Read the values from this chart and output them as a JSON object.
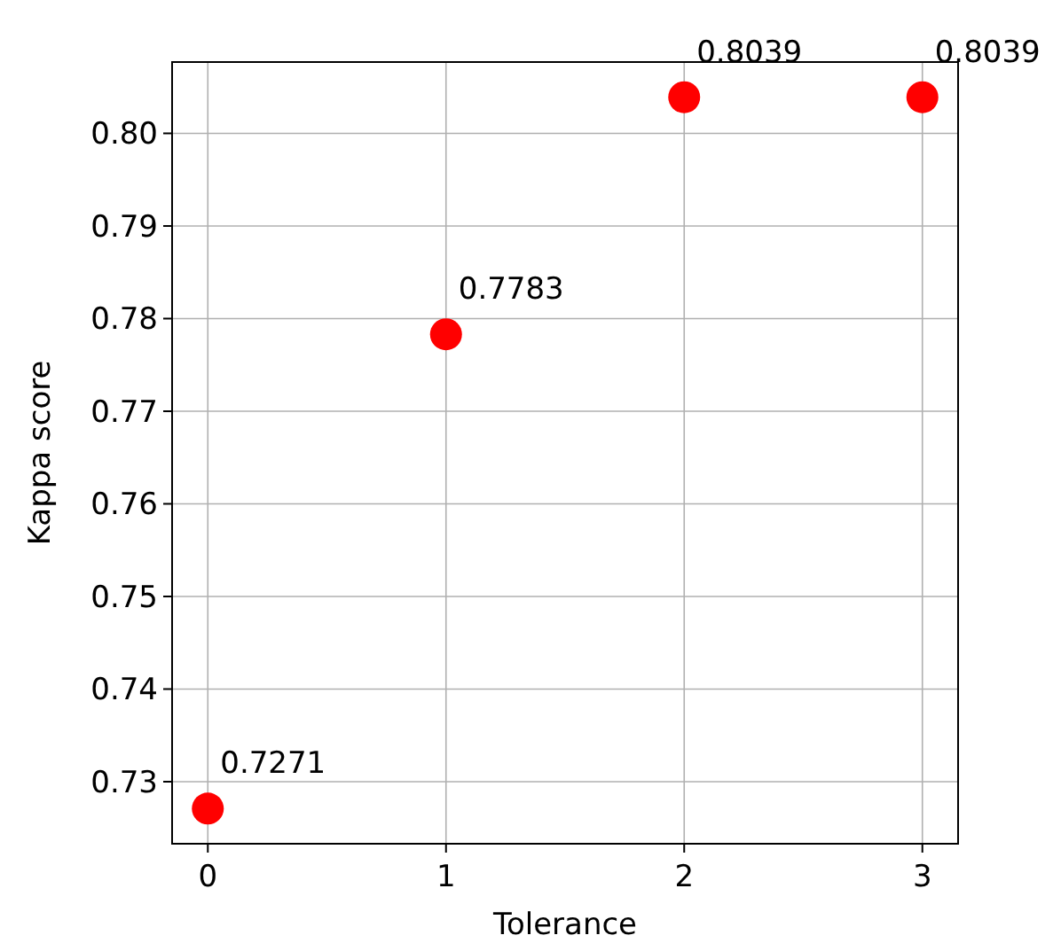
{
  "chart_data": {
    "type": "scatter",
    "xlabel": "Tolerance",
    "ylabel": "Kappa score",
    "x": [
      0,
      1,
      2,
      3
    ],
    "values": [
      0.7271,
      0.7783,
      0.8039,
      0.8039
    ],
    "color": "#ff0000",
    "marker": "circle",
    "data_labels": true,
    "grid": true,
    "xlim": [
      -0.15,
      3.15
    ],
    "xticks": [
      0,
      1,
      2,
      3
    ],
    "ylim": [
      0.7233,
      0.8077
    ],
    "yticks": [
      {
        "value": 0.73,
        "label": "0.73"
      },
      {
        "value": 0.74,
        "label": "0.74"
      },
      {
        "value": 0.75,
        "label": "0.75"
      },
      {
        "value": 0.76,
        "label": "0.76"
      },
      {
        "value": 0.77,
        "label": "0.77"
      },
      {
        "value": 0.78,
        "label": "0.78"
      },
      {
        "value": 0.79,
        "label": "0.79"
      },
      {
        "value": 0.8,
        "label": "0.80"
      }
    ]
  }
}
